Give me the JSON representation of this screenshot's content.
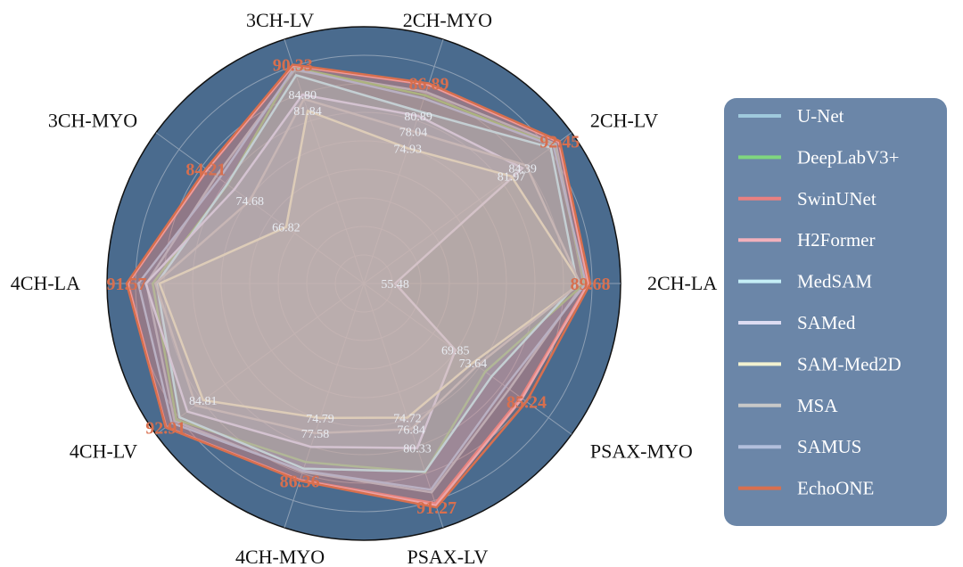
{
  "chart_data": {
    "type": "radar",
    "title": "",
    "axes": [
      "2CH-LA",
      "2CH-LV",
      "2CH-MYO",
      "3CH-LV",
      "3CH-MYO",
      "4CH-LA",
      "4CH-LV",
      "4CH-MYO",
      "PSAX-LV",
      "PSAX-MYO"
    ],
    "r_range": [
      50,
      95
    ],
    "grid": true,
    "legend_position": "right",
    "series": [
      {
        "name": "U-Net",
        "color": "#9fc9dc",
        "values": [
          88.5,
          91.6,
          85.3,
          89.3,
          82.0,
          88.1,
          91.0,
          84.7,
          88.5,
          81.5
        ]
      },
      {
        "name": "DeepLabV3+",
        "color": "#7fd67f",
        "values": [
          88.7,
          91.2,
          84.7,
          89.8,
          79.5,
          87.0,
          90.6,
          82.9,
          84.8,
          76.3
        ]
      },
      {
        "name": "SwinUNet",
        "color": "#e98080",
        "values": [
          89.3,
          92.2,
          86.6,
          90.1,
          83.9,
          91.3,
          92.8,
          86.2,
          90.5,
          84.0
        ]
      },
      {
        "name": "H2Former",
        "color": "#f2b0bb",
        "values": [
          89.4,
          92.3,
          86.7,
          90.2,
          84.0,
          91.4,
          92.9,
          86.3,
          90.9,
          84.3
        ]
      },
      {
        "name": "MedSAM",
        "color": "#c4eef6",
        "values": [
          87.4,
          90.5,
          81.7,
          88.4,
          79.6,
          86.3,
          89.9,
          84.1,
          84.7,
          77.7
        ]
      },
      {
        "name": "SAMed",
        "color": "#dcdcf2",
        "values": [
          55.48,
          84.39,
          80.89,
          84.8,
          78.04,
          88.2,
          88.2,
          80.1,
          80.33,
          69.85
        ]
      },
      {
        "name": "SAM-Med2D",
        "color": "#f2f2d0",
        "values": [
          88.0,
          81.97,
          74.93,
          81.84,
          66.82,
          85.8,
          84.81,
          74.79,
          74.72,
          73.64
        ]
      },
      {
        "name": "MSA",
        "color": "#c8c8c8",
        "values": [
          87.9,
          85.2,
          78.04,
          84.0,
          74.68,
          86.5,
          86.4,
          77.58,
          76.84,
          74.5
        ]
      },
      {
        "name": "SAMUS",
        "color": "#b2bfdc",
        "values": [
          88.9,
          91.1,
          84.1,
          89.6,
          81.3,
          89.5,
          91.6,
          84.5,
          88.0,
          80.7
        ]
      },
      {
        "name": "EchoONE",
        "color": "#d86f4e",
        "values": [
          89.68,
          92.45,
          86.89,
          90.33,
          84.21,
          91.57,
          92.91,
          86.36,
          91.27,
          85.24
        ]
      }
    ],
    "annotations": [
      {
        "axis": "2CH-LA",
        "text": "89.68",
        "emphasis": true
      },
      {
        "axis": "2CH-LV",
        "text": "92.45",
        "emphasis": true
      },
      {
        "axis": "2CH-MYO",
        "text": "86.89",
        "emphasis": true
      },
      {
        "axis": "3CH-LV",
        "text": "90.33",
        "emphasis": true
      },
      {
        "axis": "3CH-MYO",
        "text": "84.21",
        "emphasis": true
      },
      {
        "axis": "4CH-LA",
        "text": "91.57",
        "emphasis": true
      },
      {
        "axis": "4CH-LV",
        "text": "92.91",
        "emphasis": true
      },
      {
        "axis": "4CH-MYO",
        "text": "86.36",
        "emphasis": true
      },
      {
        "axis": "PSAX-LV",
        "text": "91.27",
        "emphasis": true
      },
      {
        "axis": "PSAX-MYO",
        "text": "85.24",
        "emphasis": true
      },
      {
        "axis": "2CH-LA",
        "text": "55.48",
        "emphasis": false
      },
      {
        "axis": "2CH-LV",
        "text": "84.39",
        "emphasis": false
      },
      {
        "axis": "2CH-LV",
        "text": "81.97",
        "emphasis": false
      },
      {
        "axis": "2CH-MYO",
        "text": "80.89",
        "emphasis": false
      },
      {
        "axis": "2CH-MYO",
        "text": "78.04",
        "emphasis": false
      },
      {
        "axis": "2CH-MYO",
        "text": "74.93",
        "emphasis": false
      },
      {
        "axis": "3CH-LV",
        "text": "84.80",
        "emphasis": false
      },
      {
        "axis": "3CH-LV",
        "text": "81.84",
        "emphasis": false
      },
      {
        "axis": "3CH-MYO",
        "text": "74.68",
        "emphasis": false
      },
      {
        "axis": "3CH-MYO",
        "text": "66.82",
        "emphasis": false
      },
      {
        "axis": "4CH-LV",
        "text": "84.81",
        "emphasis": false
      },
      {
        "axis": "4CH-MYO",
        "text": "74.79",
        "emphasis": false
      },
      {
        "axis": "4CH-MYO",
        "text": "77.58",
        "emphasis": false
      },
      {
        "axis": "PSAX-LV",
        "text": "74.72",
        "emphasis": false
      },
      {
        "axis": "PSAX-LV",
        "text": "76.84",
        "emphasis": false
      },
      {
        "axis": "PSAX-LV",
        "text": "80.33",
        "emphasis": false
      },
      {
        "axis": "PSAX-MYO",
        "text": "69.85",
        "emphasis": false
      },
      {
        "axis": "PSAX-MYO",
        "text": "73.64",
        "emphasis": false
      }
    ],
    "colors": {
      "plot_background": "#4a6b8e",
      "grid": "#8d9fb4",
      "legend_background": "#6b86a8",
      "emphasis_label": "#d86f4e"
    }
  }
}
